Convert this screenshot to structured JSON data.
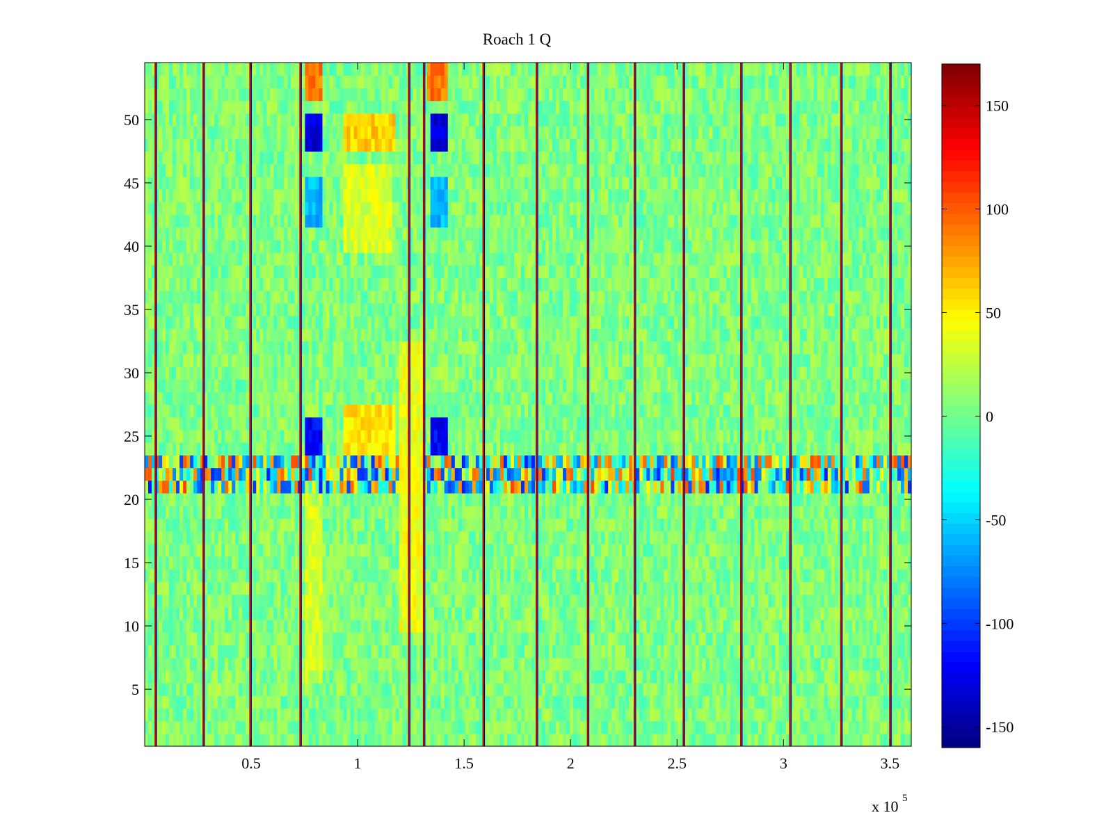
{
  "chart_data": {
    "type": "heatmap",
    "title": "Roach 1 Q",
    "xlabel": "",
    "ylabel": "",
    "x_multiplier_label": "x 10",
    "x_multiplier_exponent": "5",
    "xlim": [
      0,
      360000
    ],
    "ylim": [
      0.5,
      54.5
    ],
    "x_ticks": [
      50000,
      100000,
      150000,
      200000,
      250000,
      300000,
      350000
    ],
    "x_tick_labels": [
      "0.5",
      "1",
      "1.5",
      "2",
      "2.5",
      "3",
      "3.5"
    ],
    "y_ticks": [
      5,
      10,
      15,
      20,
      25,
      30,
      35,
      40,
      45,
      50
    ],
    "y_tick_labels": [
      "5",
      "10",
      "15",
      "20",
      "25",
      "30",
      "35",
      "40",
      "45",
      "50"
    ],
    "rows": 54,
    "grid": false,
    "colormap": "jet",
    "colorbar": {
      "clim": [
        -160,
        170
      ],
      "ticks": [
        -150,
        -100,
        -50,
        0,
        50,
        100,
        150
      ],
      "tick_labels": [
        "-150",
        "-100",
        "-50",
        "0",
        "50",
        "100",
        "150"
      ],
      "placement": "right"
    },
    "background_level": 5,
    "vertical_stripes_x": [
      5000,
      27500,
      49500,
      73000,
      124000,
      131000,
      159000,
      184000,
      208000,
      230000,
      253000,
      280000,
      303000,
      327000,
      350000
    ],
    "features": [
      {
        "rows": [
          48,
          50
        ],
        "x_range": [
          75000,
          83000
        ],
        "value": -130
      },
      {
        "rows": [
          48,
          50
        ],
        "x_range": [
          134000,
          142000
        ],
        "value": -130
      },
      {
        "rows": [
          48,
          50
        ],
        "x_range": [
          94000,
          117000
        ],
        "value": 60
      },
      {
        "rows": [
          42,
          45
        ],
        "x_range": [
          75000,
          83000
        ],
        "value": -60
      },
      {
        "rows": [
          42,
          45
        ],
        "x_range": [
          134000,
          142000
        ],
        "value": -60
      },
      {
        "rows": [
          40,
          46
        ],
        "x_range": [
          93000,
          116000
        ],
        "value": 35
      },
      {
        "rows": [
          52,
          54
        ],
        "x_range": [
          75000,
          83000
        ],
        "value": 90
      },
      {
        "rows": [
          52,
          54
        ],
        "x_range": [
          133000,
          142000
        ],
        "value": 90
      },
      {
        "rows": [
          24,
          26
        ],
        "x_range": [
          75000,
          83000
        ],
        "value": -120
      },
      {
        "rows": [
          24,
          26
        ],
        "x_range": [
          134000,
          142000
        ],
        "value": -120
      },
      {
        "rows": [
          24,
          27
        ],
        "x_range": [
          93000,
          117000
        ],
        "value": 55
      },
      {
        "rows": [
          10,
          32
        ],
        "x_range": [
          120000,
          131000
        ],
        "value": 40
      },
      {
        "rows": [
          6,
          20
        ],
        "x_range": [
          75000,
          83000
        ],
        "value": 30
      }
    ],
    "noisy_band_rows": [
      21,
      23
    ]
  }
}
